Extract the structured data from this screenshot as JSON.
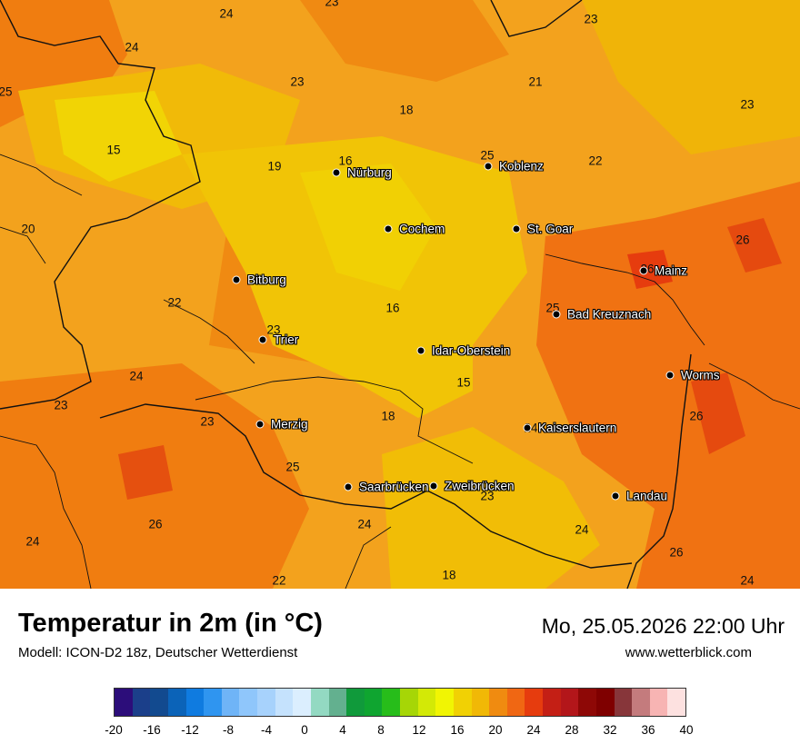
{
  "title": "Temperatur in 2m (in °C)",
  "model": "Modell: ICON-D2 18z, Deutscher Wetterdienst",
  "datetime": "Mo, 25.05.2026 22:00 Uhr",
  "website": "www.wetterblick.com",
  "cities": [
    {
      "name": "Nürburg"
    },
    {
      "name": "Koblenz"
    },
    {
      "name": "Cochem"
    },
    {
      "name": "St. Goar"
    },
    {
      "name": "Mainz"
    },
    {
      "name": "Bitburg"
    },
    {
      "name": "Bad Kreuznach"
    },
    {
      "name": "Trier"
    },
    {
      "name": "Idar-Oberstein"
    },
    {
      "name": "Worms"
    },
    {
      "name": "Merzig"
    },
    {
      "name": "Kaiserslautern"
    },
    {
      "name": "Saarbrücken"
    },
    {
      "name": "Zweibrücken"
    },
    {
      "name": "Landau"
    }
  ],
  "temp_labels": [
    "24",
    "23",
    "24",
    "23",
    "25",
    "23",
    "21",
    "23",
    "18",
    "15",
    "25",
    "16",
    "19",
    "22",
    "20",
    "26",
    "26",
    "22",
    "25",
    "16",
    "23",
    "24",
    "15",
    "23",
    "23",
    "18",
    "24",
    "26",
    "25",
    "23",
    "26",
    "24",
    "24",
    "24",
    "26",
    "22",
    "18",
    "24"
  ],
  "colorbar": {
    "colors": [
      "#2c0d7a",
      "#1b3f8a",
      "#124a8f",
      "#0b63b8",
      "#0f7be0",
      "#2f95f0",
      "#6fb4f7",
      "#8fc6fb",
      "#a7d2fc",
      "#c5e2fd",
      "#dbeefe",
      "#93d9c2",
      "#63b08f",
      "#109a3b",
      "#0fa530",
      "#27bd1a",
      "#a6d606",
      "#d3e906",
      "#f1f503",
      "#f1d104",
      "#f1b806",
      "#f08b10",
      "#f06713",
      "#e63c0e",
      "#c41f15",
      "#b3161a",
      "#8e0806",
      "#7f0000",
      "#87363a",
      "#c47b7d",
      "#f7b4b3",
      "#fde1e0"
    ],
    "ticks": [
      "-20",
      "-16",
      "-12",
      "-8",
      "-4",
      "0",
      "4",
      "8",
      "12",
      "16",
      "20",
      "24",
      "28",
      "32",
      "36",
      "40"
    ]
  }
}
